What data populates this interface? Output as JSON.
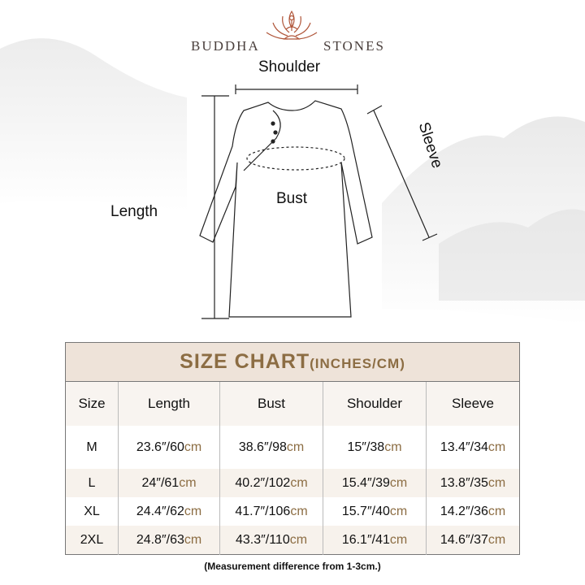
{
  "brand": {
    "left": "BUDDHA",
    "right": "STONES",
    "accent": "#b0563a"
  },
  "diagram": {
    "shoulder": "Shoulder",
    "sleeve": "Sleeve",
    "length": "Length",
    "bust": "Bust"
  },
  "table": {
    "title": "SIZE CHART",
    "title_unit": "(INCHES/CM)",
    "headers": [
      "Size",
      "Length",
      "Bust",
      "Shoulder",
      "Sleeve"
    ],
    "rows": [
      {
        "size": "M",
        "cells": [
          [
            "23.6″/60",
            "cm"
          ],
          [
            "38.6″/98",
            "cm"
          ],
          [
            "15″/38",
            "cm"
          ],
          [
            "13.4″/34",
            "cm"
          ]
        ]
      },
      {
        "size": "L",
        "cells": [
          [
            "24″/61",
            "cm"
          ],
          [
            "40.2″/102",
            "cm"
          ],
          [
            "15.4″/39",
            "cm"
          ],
          [
            "13.8″/35",
            "cm"
          ]
        ]
      },
      {
        "size": "XL",
        "cells": [
          [
            "24.4″/62",
            "cm"
          ],
          [
            "41.7″/106",
            "cm"
          ],
          [
            "15.7″/40",
            "cm"
          ],
          [
            "14.2″/36",
            "cm"
          ]
        ]
      },
      {
        "size": "2XL",
        "cells": [
          [
            "24.8″/63",
            "cm"
          ],
          [
            "43.3″/110",
            "cm"
          ],
          [
            "16.1″/41",
            "cm"
          ],
          [
            "14.6″/37",
            "cm"
          ]
        ]
      }
    ],
    "accent": "#8c6d43"
  },
  "note": "(Measurement difference from 1-3cm.)"
}
